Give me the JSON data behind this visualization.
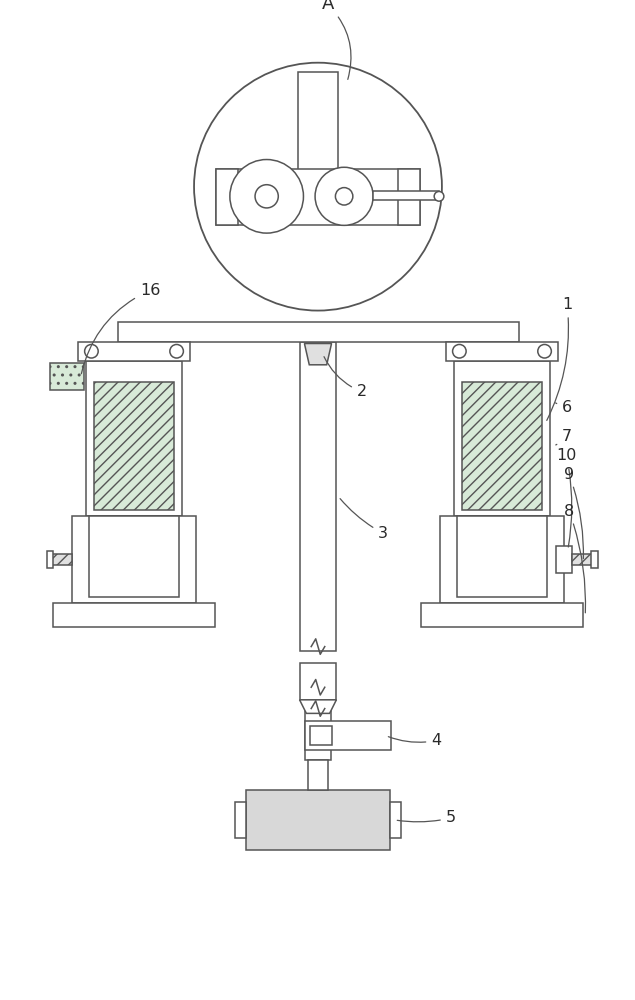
{
  "background_color": "#ffffff",
  "line_color": "#555555",
  "fill_hatch_green": "#d8ead8",
  "fill_gray_light": "#e0e0e0",
  "fill_gray_med": "#c8c8c8",
  "fill_dot_gray": "#d8d8d8"
}
